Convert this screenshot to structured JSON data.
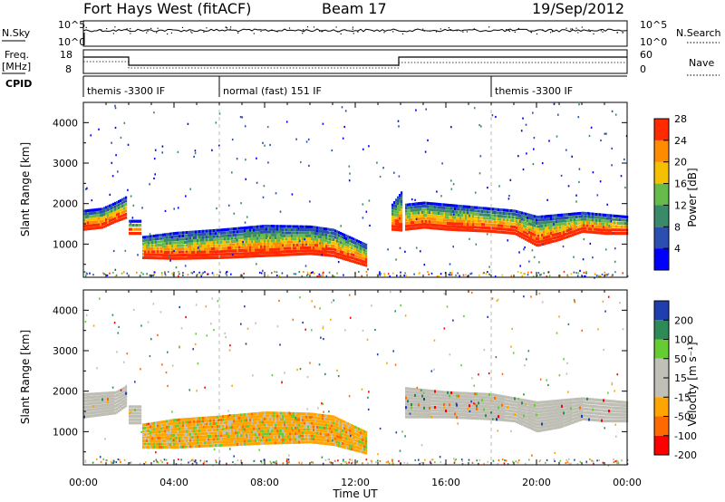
{
  "header": {
    "station": "Fort Hays West (fitACF)",
    "beam": "Beam 17",
    "date": "19/Sep/2012"
  },
  "summary": {
    "left_label_top": "N.Sky",
    "right_label_top": "N.Search",
    "left_label_freq_line1": "Freq.",
    "left_label_freq_line2": "[MHz]",
    "right_label_freq": "Nave",
    "cpid_label": "CPID",
    "nsky_ticks": [
      "10^5",
      "10^0"
    ],
    "nsearch_ticks": [
      "10^5",
      "10^0"
    ],
    "freq_ticks": [
      "18",
      "8"
    ],
    "nave_ticks": [
      "60",
      "0"
    ]
  },
  "cpid": [
    {
      "start_hour": 0.0,
      "end_hour": 6.0,
      "label": "themis -3300 IF"
    },
    {
      "start_hour": 6.0,
      "end_hour": 18.0,
      "label": "normal (fast) 151 IF"
    },
    {
      "start_hour": 18.0,
      "end_hour": 24.0,
      "label": "themis -3300 IF"
    }
  ],
  "colors": {
    "power_scale": [
      "#0000ff",
      "#2a4fb0",
      "#3a8a6a",
      "#66bb4a",
      "#f5c000",
      "#ff8c00",
      "#ff2a00"
    ],
    "velocity_scale": [
      "#ff0000",
      "#ff6a00",
      "#ffa500",
      "#c0c0b8",
      "#c0c0b8",
      "#66cc33",
      "#2e8b57",
      "#1f3fae"
    ],
    "ground_scatter": "#bebeb4"
  },
  "chart_data": [
    {
      "type": "heatmap",
      "name": "power",
      "ylabel": "Slant Range [km]",
      "xlabel": "Time UT",
      "x_ticks": [
        "00:00",
        "04:00",
        "08:00",
        "12:00",
        "16:00",
        "20:00",
        "00:00"
      ],
      "y_ticks": [
        1000,
        2000,
        3000,
        4000
      ],
      "xlim": [
        0,
        24
      ],
      "ylim": [
        180,
        4500
      ],
      "colorbar_label": "Power [dB]",
      "colorbar_ticks": [
        4,
        8,
        12,
        16,
        20,
        24,
        28
      ],
      "bands": [
        {
          "x": [
            0.0,
            0.8,
            1.4,
            1.9
          ],
          "lo": [
            1400,
            1450,
            1600,
            1700
          ],
          "hi": [
            1850,
            1900,
            2050,
            2200
          ]
        },
        {
          "x": [
            2.0,
            2.5
          ],
          "lo": [
            1300,
            1300
          ],
          "hi": [
            1600,
            1600
          ]
        },
        {
          "x": [
            2.6,
            4.0,
            6.0,
            8.0,
            10.0,
            11.0,
            12.5
          ],
          "lo": [
            700,
            680,
            700,
            750,
            800,
            750,
            500
          ],
          "hi": [
            1200,
            1300,
            1380,
            1480,
            1460,
            1380,
            1000
          ]
        },
        {
          "x": [
            13.6,
            14.0
          ],
          "lo": [
            1400,
            1380
          ],
          "hi": [
            2000,
            2300
          ]
        },
        {
          "x": [
            14.2,
            15.0,
            16.0,
            18.0,
            19.0,
            20.0,
            21.0,
            22.0,
            23.0,
            24.0
          ],
          "lo": [
            1400,
            1450,
            1400,
            1350,
            1300,
            1000,
            1150,
            1350,
            1300,
            1300
          ],
          "hi": [
            2000,
            2050,
            2000,
            1900,
            1850,
            1700,
            1750,
            1800,
            1750,
            1700
          ]
        }
      ]
    },
    {
      "type": "heatmap",
      "name": "velocity",
      "ylabel": "Slant Range [km]",
      "xlabel": "Time UT",
      "x_ticks": [
        "00:00",
        "04:00",
        "08:00",
        "12:00",
        "16:00",
        "20:00",
        "00:00"
      ],
      "y_ticks": [
        1000,
        2000,
        3000,
        4000
      ],
      "xlim": [
        0,
        24
      ],
      "ylim": [
        180,
        4500
      ],
      "colorbar_label": "Velocity [m s⁻¹]",
      "colorbar_ticks": [
        200,
        100,
        50,
        15,
        -15,
        -50,
        -100,
        -200
      ],
      "bands": [
        {
          "x": [
            0.0,
            1.4,
            1.9
          ],
          "lo": [
            1400,
            1500,
            1700
          ],
          "hi": [
            1950,
            2000,
            2150
          ],
          "color": "ground"
        },
        {
          "x": [
            2.0,
            2.5
          ],
          "lo": [
            1250,
            1250
          ],
          "hi": [
            1650,
            1650
          ],
          "color": "ground"
        },
        {
          "x": [
            2.6,
            4.0,
            6.0,
            8.0,
            10.0,
            11.0,
            12.5
          ],
          "lo": [
            650,
            650,
            700,
            750,
            780,
            720,
            500
          ],
          "hi": [
            1200,
            1320,
            1400,
            1500,
            1470,
            1400,
            1000
          ],
          "color": "mixed"
        },
        {
          "x": [
            14.2,
            16.0,
            18.0,
            19.0,
            20.0,
            21.0,
            22.0,
            23.0,
            24.0
          ],
          "lo": [
            1400,
            1400,
            1350,
            1300,
            1050,
            1150,
            1350,
            1300,
            1300
          ],
          "hi": [
            2100,
            2000,
            1950,
            1850,
            1750,
            1800,
            1850,
            1800,
            1750
          ],
          "color": "ground"
        }
      ]
    }
  ]
}
